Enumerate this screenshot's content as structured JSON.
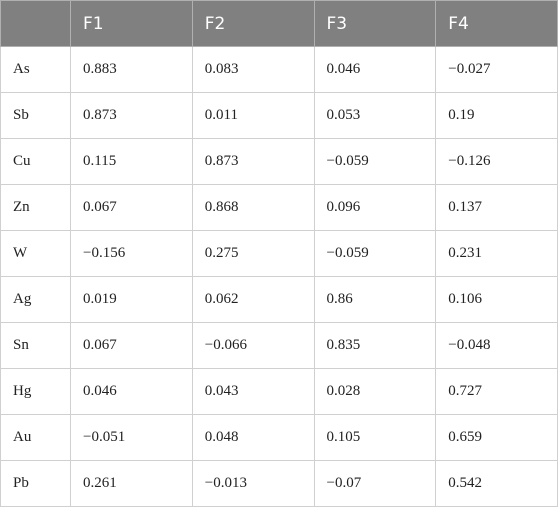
{
  "table": {
    "header": [
      "F1",
      "F2",
      "F3",
      "F4"
    ],
    "rows": [
      [
        "As",
        "0.883",
        "0.083",
        "0.046",
        "−0.027"
      ],
      [
        "Sb",
        "0.873",
        "0.011",
        "0.053",
        "0.19"
      ],
      [
        "Cu",
        "0.115",
        "0.873",
        "−0.059",
        "−0.126"
      ],
      [
        "Zn",
        "0.067",
        "0.868",
        "0.096",
        "0.137"
      ],
      [
        "W",
        "−0.156",
        "0.275",
        "−0.059",
        "0.231"
      ],
      [
        "Ag",
        "0.019",
        "0.062",
        "0.86",
        "0.106"
      ],
      [
        "Sn",
        "0.067",
        "−0.066",
        "0.835",
        "−0.048"
      ],
      [
        "Hg",
        "0.046",
        "0.043",
        "0.028",
        "0.727"
      ],
      [
        "Au",
        "−0.051",
        "0.048",
        "0.105",
        "0.659"
      ],
      [
        "Pb",
        "0.261",
        "−0.013",
        "−0.07",
        "0.542"
      ]
    ]
  }
}
